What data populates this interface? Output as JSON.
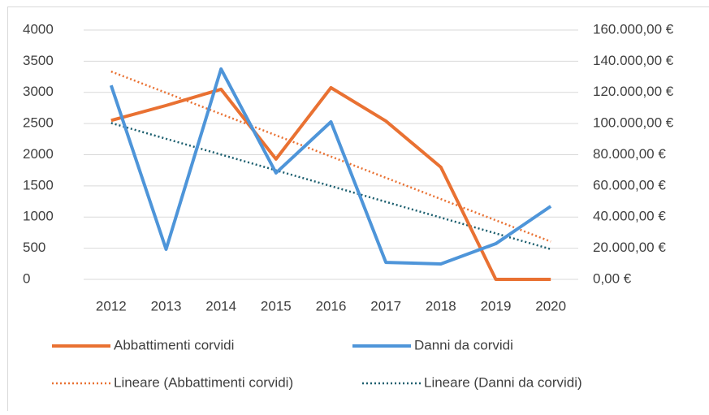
{
  "chart_data": {
    "type": "line",
    "categories": [
      "2012",
      "2013",
      "2014",
      "2015",
      "2016",
      "2017",
      "2018",
      "2019",
      "2020"
    ],
    "series": [
      {
        "name": "Abbattimenti corvidi",
        "color": "#E97132",
        "values": [
          2550,
          2790,
          3050,
          1930,
          3075,
          2540,
          1800,
          0,
          0
        ],
        "trendline": {
          "name": "Lineare (Abbattimenti corvidi)",
          "color": "#E97132"
        }
      },
      {
        "name": "Danni da corvidi",
        "color": "#4E95D9",
        "axis": "y2",
        "values": [
          124500,
          19300,
          135000,
          68300,
          101100,
          10900,
          9900,
          22900,
          46900
        ],
        "trendline": {
          "name": "Lineare (Danni da corvidi)",
          "color": "#1B5E6E"
        }
      }
    ],
    "ylim": [
      0,
      4000
    ],
    "yticks": [
      0,
      500,
      1000,
      1500,
      2000,
      2500,
      3000,
      3500,
      4000
    ],
    "y2lim": [
      0,
      160000
    ],
    "y2ticks": [
      {
        "value": 0,
        "label": "0,00 €"
      },
      {
        "value": 20000,
        "label": "20.000,00 €"
      },
      {
        "value": 40000,
        "label": "40.000,00 €"
      },
      {
        "value": 60000,
        "label": "60.000,00 €"
      },
      {
        "value": 80000,
        "label": "80.000,00 €"
      },
      {
        "value": 100000,
        "label": "100.000,00 €"
      },
      {
        "value": 120000,
        "label": "120.000,00 €"
      },
      {
        "value": 140000,
        "label": "140.000,00 €"
      },
      {
        "value": 160000,
        "label": "160.000,00 €"
      }
    ],
    "grid": true
  }
}
